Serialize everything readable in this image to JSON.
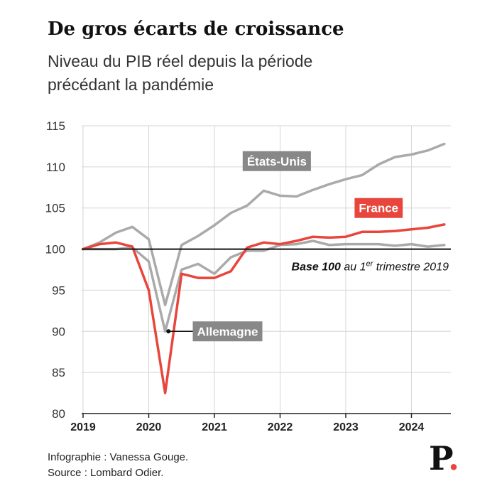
{
  "title": "De gros écarts de croissance",
  "subtitle": [
    "Niveau du PIB réel depuis la période",
    "précédant la pandémie"
  ],
  "footer": {
    "credit": "Infographie : Vanessa Gouge.",
    "source": "Source : Lombard Odier."
  },
  "logo": {
    "letter": "P",
    "dot": "."
  },
  "colors": {
    "us": "#aaaaaa",
    "germany": "#aaaaaa",
    "france": "#e8453c",
    "label_gray": "#888888",
    "baseline": "#111111"
  },
  "baseline_label": {
    "bold": "Base 100",
    "rest1": " au 1",
    "sup": "er",
    "rest2": " trimestre 2019"
  },
  "chart_data": {
    "type": "line",
    "ylim": [
      80,
      115
    ],
    "yticks": [
      80,
      85,
      90,
      95,
      100,
      105,
      110,
      115
    ],
    "xlim": [
      2019,
      2024.6
    ],
    "xticks": [
      "2019",
      "2020",
      "2021",
      "2022",
      "2023",
      "2024"
    ],
    "grid": "vertical",
    "baseline": 100,
    "series": [
      {
        "name": "États-Unis",
        "key": "us",
        "x": [
          2019.0,
          2019.25,
          2019.5,
          2019.75,
          2020.0,
          2020.25,
          2020.5,
          2020.75,
          2021.0,
          2021.25,
          2021.5,
          2021.75,
          2022.0,
          2022.25,
          2022.5,
          2022.75,
          2023.0,
          2023.25,
          2023.5,
          2023.75,
          2024.0,
          2024.25,
          2024.5
        ],
        "values": [
          100.0,
          100.8,
          102.0,
          102.7,
          101.2,
          93.2,
          100.5,
          101.6,
          102.9,
          104.4,
          105.3,
          107.1,
          106.5,
          106.4,
          107.2,
          107.9,
          108.5,
          109.0,
          110.3,
          111.2,
          111.5,
          112.0,
          112.8
        ]
      },
      {
        "name": "France",
        "key": "france",
        "x": [
          2019.0,
          2019.25,
          2019.5,
          2019.75,
          2020.0,
          2020.25,
          2020.5,
          2020.75,
          2021.0,
          2021.25,
          2021.5,
          2021.75,
          2022.0,
          2022.25,
          2022.5,
          2022.75,
          2023.0,
          2023.25,
          2023.5,
          2023.75,
          2024.0,
          2024.25,
          2024.5
        ],
        "values": [
          100.0,
          100.6,
          100.8,
          100.3,
          95.0,
          82.5,
          97.0,
          96.5,
          96.5,
          97.3,
          100.2,
          100.8,
          100.6,
          101.0,
          101.5,
          101.4,
          101.5,
          102.1,
          102.1,
          102.2,
          102.4,
          102.6,
          103.0
        ]
      },
      {
        "name": "Allemagne",
        "key": "germany",
        "x": [
          2019.0,
          2019.25,
          2019.5,
          2019.75,
          2020.0,
          2020.25,
          2020.5,
          2020.75,
          2021.0,
          2021.25,
          2021.5,
          2021.75,
          2022.0,
          2022.25,
          2022.5,
          2022.75,
          2023.0,
          2023.25,
          2023.5,
          2023.75,
          2024.0,
          2024.25,
          2024.5
        ],
        "values": [
          100.0,
          100.0,
          100.0,
          100.2,
          98.5,
          90.0,
          97.5,
          98.2,
          97.0,
          99.0,
          99.8,
          99.8,
          100.5,
          100.6,
          101.0,
          100.5,
          100.6,
          100.6,
          100.6,
          100.4,
          100.6,
          100.3,
          100.5
        ]
      }
    ],
    "labels": [
      {
        "text": "États-Unis",
        "key": "us",
        "x": 2021.95,
        "y": 110.7
      },
      {
        "text": "France",
        "key": "france",
        "x": 2023.5,
        "y": 105.0
      },
      {
        "text": "Allemagne",
        "key": "germany",
        "x": 2021.2,
        "y": 90.0,
        "pointer_x": 2020.3
      }
    ]
  }
}
